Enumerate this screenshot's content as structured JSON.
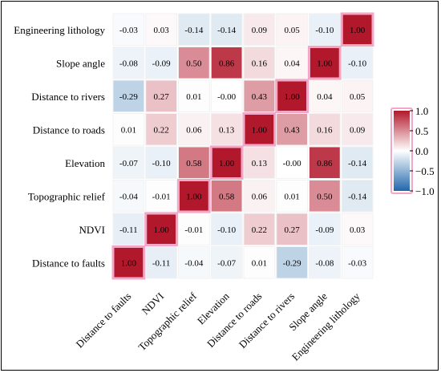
{
  "chart_data": {
    "type": "heatmap",
    "title": "",
    "xlabel": "",
    "ylabel": "",
    "x_labels": [
      "Distance to faults",
      "NDVI",
      "Topographic relief",
      "Elevation",
      "Distance to roads",
      "Distance to rivers",
      "Slope angle",
      "Engineering lithology"
    ],
    "y_labels": [
      "Engineering lithology",
      "Slope  angle",
      "Distance to rivers",
      "Distance to roads",
      "Elevation",
      "Topographic relief",
      "NDVI",
      "Distance to faults"
    ],
    "value_labels": [
      [
        "-0.03",
        "0.03",
        "-0.14",
        "-0.14",
        "0.09",
        "0.05",
        "-0.10",
        "1.00"
      ],
      [
        "-0.08",
        "-0.09",
        "0.50",
        "0.86",
        "0.16",
        "0.04",
        "1.00",
        "-0.10"
      ],
      [
        "-0.29",
        "0.27",
        "0.01",
        "-0.00",
        "0.43",
        "1.00",
        "0.04",
        "0.05"
      ],
      [
        "0.01",
        "0.22",
        "0.06",
        "0.13",
        "1.00",
        "0.43",
        "0.16",
        "0.09"
      ],
      [
        "-0.07",
        "-0.10",
        "0.58",
        "1.00",
        "0.13",
        "-0.00",
        "0.86",
        "-0.14"
      ],
      [
        "-0.04",
        "-0.01",
        "1.00",
        "0.58",
        "0.06",
        "0.01",
        "0.50",
        "-0.14"
      ],
      [
        "-0.11",
        "1.00",
        "-0.01",
        "-0.10",
        "0.22",
        "0.27",
        "-0.09",
        "0.03"
      ],
      [
        "1.00",
        "-0.11",
        "-0.04",
        "-0.07",
        "0.01",
        "-0.29",
        "-0.08",
        "-0.03"
      ]
    ],
    "values": [
      [
        -0.03,
        0.03,
        -0.14,
        -0.14,
        0.09,
        0.05,
        -0.1,
        1.0
      ],
      [
        -0.08,
        -0.09,
        0.5,
        0.86,
        0.16,
        0.04,
        1.0,
        -0.1
      ],
      [
        -0.29,
        0.27,
        0.01,
        0.0,
        0.43,
        1.0,
        0.04,
        0.05
      ],
      [
        0.01,
        0.22,
        0.06,
        0.13,
        1.0,
        0.43,
        0.16,
        0.09
      ],
      [
        -0.07,
        -0.1,
        0.58,
        1.0,
        0.13,
        0.0,
        0.86,
        -0.14
      ],
      [
        -0.04,
        -0.01,
        1.0,
        0.58,
        0.06,
        0.01,
        0.5,
        -0.14
      ],
      [
        -0.11,
        1.0,
        -0.01,
        -0.1,
        0.22,
        0.27,
        -0.09,
        0.03
      ],
      [
        1.0,
        -0.11,
        -0.04,
        -0.07,
        0.01,
        -0.29,
        -0.08,
        -0.03
      ]
    ],
    "colorbar": {
      "range": [
        -1.0,
        1.0
      ],
      "ticks": [
        1.0,
        0.5,
        0.0,
        -0.5,
        -1.0
      ],
      "tick_labels": [
        "1.0",
        "0.5",
        "0.0",
        "−0.5",
        "−1.0"
      ],
      "placement": "right"
    },
    "colors": {
      "positive": "#b2182b",
      "neutral": "#ffffff",
      "negative": "#2166ac",
      "highlight_border": "#f4a6c6"
    }
  }
}
